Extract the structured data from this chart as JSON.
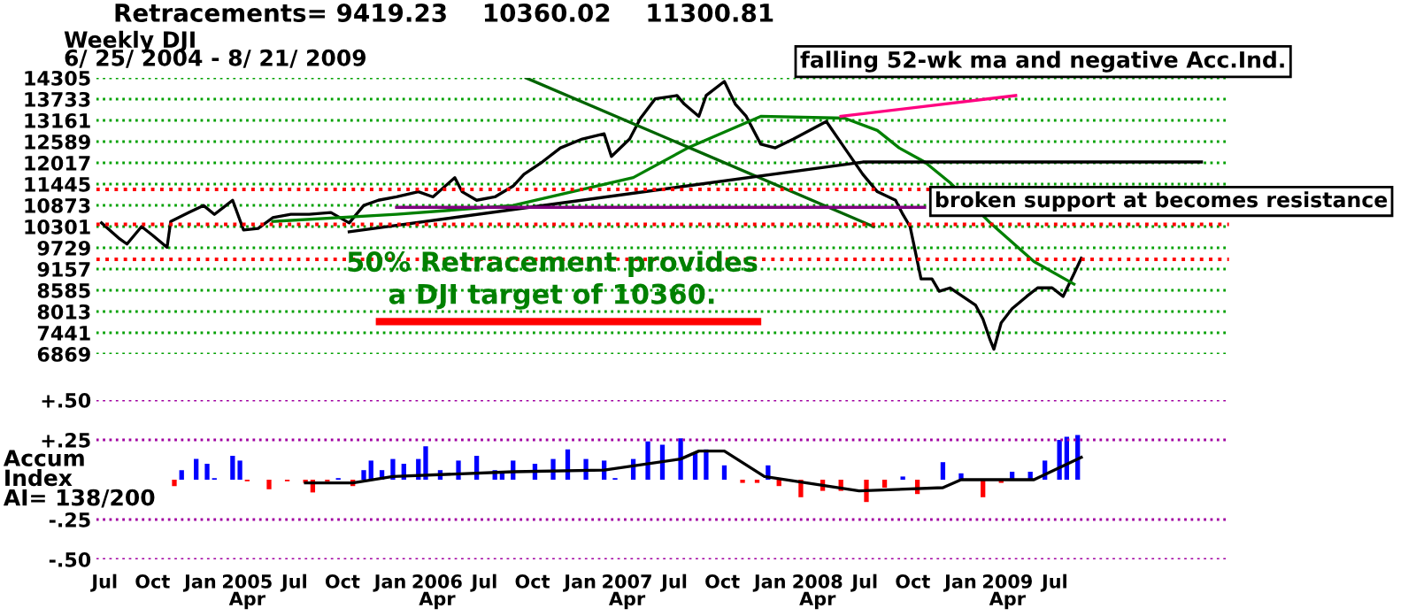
{
  "chart_data": [
    {
      "type": "line",
      "title": "Retracements= 9419.23    10360.02    11300.81",
      "subtitle": "Weekly DJI\n6/ 25/ 2004 - 8/ 21/ 2009",
      "annotations": [
        "falling 52-wk ma and negative Acc.Ind.",
        "broken support at becomes resistance",
        "50% Retracement provides\na DJI target of 10360."
      ],
      "xlim": [
        "2004-06-15",
        "2010-06-01"
      ],
      "ylim": [
        6869,
        14305
      ],
      "yticks": [
        6869,
        7441,
        8013,
        8585,
        9157,
        9729,
        10301,
        10873,
        11445,
        12017,
        12589,
        13161,
        13733,
        14305
      ],
      "tick_labels": "y",
      "grid": "y",
      "legend": false,
      "ref_lines": [
        {
          "axis": "y",
          "value": 9419.23,
          "color": "#ff0000",
          "line_style": "dotted"
        },
        {
          "axis": "y",
          "value": 10360.02,
          "color": "#ff0000",
          "line_style": "dotted"
        },
        {
          "axis": "y",
          "value": 11300.81,
          "color": "#ff0000",
          "line_style": "dotted"
        }
      ],
      "series": [
        {
          "color": "#000000",
          "x": [
            "2004-06-25",
            "2004-07-30",
            "2004-08-13",
            "2004-09-10",
            "2004-10-01",
            "2004-10-29",
            "2004-11-05",
            "2004-12-10",
            "2005-01-07",
            "2005-01-28",
            "2005-03-04",
            "2005-03-25",
            "2005-04-22",
            "2005-05-20",
            "2005-06-24",
            "2005-07-29",
            "2005-09-09",
            "2005-10-14",
            "2005-11-11",
            "2005-12-09",
            "2006-01-13",
            "2006-02-24",
            "2006-03-24",
            "2006-05-05",
            "2006-05-19",
            "2006-06-16",
            "2006-07-21",
            "2006-08-25",
            "2006-09-15",
            "2006-10-20",
            "2006-11-24",
            "2007-01-05",
            "2007-02-16",
            "2007-03-02",
            "2007-04-06",
            "2007-04-27",
            "2007-05-25",
            "2007-07-06",
            "2007-07-20",
            "2007-08-17",
            "2007-08-31",
            "2007-10-05",
            "2007-10-26",
            "2007-11-16",
            "2007-12-14",
            "2008-01-11",
            "2008-02-15",
            "2008-04-18",
            "2008-05-23",
            "2008-06-27",
            "2008-07-25",
            "2008-08-29",
            "2008-09-12",
            "2008-09-26",
            "2008-10-17",
            "2008-11-07",
            "2008-11-21",
            "2008-12-12",
            "2009-01-30",
            "2009-02-13",
            "2009-02-27",
            "2009-03-06",
            "2009-03-20",
            "2009-04-10",
            "2009-05-08",
            "2009-05-29",
            "2009-06-26",
            "2009-07-17",
            "2009-08-07",
            "2009-08-21"
          ],
          "values": [
            10400,
            9970,
            9830,
            10300,
            10070,
            9740,
            10440,
            10680,
            10870,
            10630,
            11010,
            10210,
            10250,
            10540,
            10630,
            10630,
            10680,
            10400,
            10870,
            11010,
            11100,
            11240,
            11100,
            11620,
            11240,
            11010,
            11100,
            11390,
            11710,
            12040,
            12420,
            12660,
            12800,
            12190,
            12660,
            13220,
            13740,
            13830,
            13600,
            13270,
            13830,
            14210,
            13600,
            13270,
            12520,
            12420,
            12660,
            13130,
            12420,
            11710,
            11240,
            11010,
            10630,
            10300,
            8890,
            8890,
            8560,
            8650,
            8180,
            7810,
            7240,
            7000,
            7710,
            8090,
            8420,
            8650,
            8650,
            8420,
            9030,
            9450
          ]
        },
        {
          "color": "#008000",
          "x": [
            "2005-05-20",
            "2006-01-13",
            "2006-08-25",
            "2007-04-13",
            "2007-07-27",
            "2007-12-14",
            "2008-05-23",
            "2008-07-25",
            "2008-09-05",
            "2008-10-24",
            "2008-12-12",
            "2009-02-27",
            "2009-05-22",
            "2009-08-07"
          ],
          "values": [
            10440,
            10630,
            10870,
            11620,
            12420,
            13270,
            13220,
            12890,
            12420,
            12040,
            11480,
            10400,
            9360,
            8750
          ]
        },
        {
          "color": "#006400",
          "x": [
            "2006-09-19",
            "2008-07-18"
          ],
          "values": [
            14305,
            10300
          ]
        },
        {
          "color": "#000000",
          "x": [
            "2005-10-14",
            "2008-06-27",
            "2010-04-09"
          ],
          "values": [
            10160,
            12040,
            12040
          ]
        },
        {
          "color": "#800080",
          "x": [
            "2006-01-13",
            "2008-10-24"
          ],
          "values": [
            10820,
            10820
          ]
        },
        {
          "color": "#ff0080",
          "x": [
            "2008-05-16",
            "2009-04-17"
          ],
          "values": [
            13270,
            13830
          ]
        }
      ]
    },
    {
      "type": "bar",
      "ylabel": "Accum\nIndex\nAI= 138/200",
      "xlim": [
        "2004-06-15",
        "2010-06-01"
      ],
      "ylim": [
        -0.5,
        0.5
      ],
      "yticks": [
        {
          "value": -0.5,
          "label": "-.50"
        },
        {
          "value": -0.25,
          "label": "-.25"
        },
        {
          "value": 0.25,
          "label": "+.25"
        },
        {
          "value": 0.5,
          "label": "+.50"
        }
      ],
      "xticks": [
        {
          "value": "2004-07-01",
          "label": "Jul"
        },
        {
          "value": "2004-10-01",
          "label": "Oct"
        },
        {
          "value": "2005-01-01",
          "label": "Jan"
        },
        {
          "value": "2005-04-01",
          "label": "2005\nApr"
        },
        {
          "value": "2005-07-01",
          "label": "Jul"
        },
        {
          "value": "2005-10-01",
          "label": "Oct"
        },
        {
          "value": "2006-01-01",
          "label": "Jan"
        },
        {
          "value": "2006-04-01",
          "label": "2006\nApr"
        },
        {
          "value": "2006-07-01",
          "label": "Jul"
        },
        {
          "value": "2006-10-01",
          "label": "Oct"
        },
        {
          "value": "2007-01-01",
          "label": "Jan"
        },
        {
          "value": "2007-04-01",
          "label": "2007\nApr"
        },
        {
          "value": "2007-07-01",
          "label": "Jul"
        },
        {
          "value": "2007-10-01",
          "label": "Oct"
        },
        {
          "value": "2008-01-01",
          "label": "Jan"
        },
        {
          "value": "2008-04-01",
          "label": "2008\nApr"
        },
        {
          "value": "2008-07-01",
          "label": "Jul"
        },
        {
          "value": "2008-10-01",
          "label": "Oct"
        },
        {
          "value": "2009-01-01",
          "label": "Jan"
        },
        {
          "value": "2009-04-01",
          "label": "2009\nApr"
        },
        {
          "value": "2009-07-01",
          "label": "Jul"
        }
      ],
      "grid": "y",
      "legend": false,
      "series": [
        {
          "x": [
            "2004-11-12",
            "2004-11-26",
            "2004-12-24",
            "2005-01-14",
            "2005-01-28",
            "2005-03-04",
            "2005-03-18",
            "2005-04-01",
            "2005-05-13",
            "2005-06-17",
            "2005-07-22",
            "2005-08-05",
            "2005-09-02",
            "2005-09-23",
            "2005-10-21",
            "2005-11-11",
            "2005-11-25",
            "2005-12-16",
            "2006-01-06",
            "2006-01-27",
            "2006-02-24",
            "2006-03-10",
            "2006-04-07",
            "2006-05-12",
            "2006-06-16",
            "2006-07-21",
            "2006-08-04",
            "2006-08-25",
            "2006-10-06",
            "2006-11-10",
            "2006-12-08",
            "2007-01-12",
            "2007-02-16",
            "2007-03-09",
            "2007-04-13",
            "2007-05-11",
            "2007-06-08",
            "2007-07-13",
            "2007-08-10",
            "2007-08-31",
            "2007-10-05",
            "2007-11-09",
            "2007-12-07",
            "2007-12-28",
            "2008-01-18",
            "2008-02-29",
            "2008-04-11",
            "2008-05-16",
            "2008-07-04",
            "2008-08-08",
            "2008-09-12",
            "2008-10-10",
            "2008-11-28",
            "2009-01-02",
            "2009-01-23",
            "2009-02-13",
            "2009-03-20",
            "2009-04-10",
            "2009-05-15",
            "2009-06-12",
            "2009-07-10",
            "2009-07-24",
            "2009-08-14"
          ],
          "values": [
            -0.04,
            0.06,
            0.13,
            0.1,
            0.01,
            0.15,
            0.12,
            -0.01,
            -0.06,
            -0.01,
            -0.02,
            -0.08,
            -0.01,
            0.01,
            -0.04,
            0.06,
            0.12,
            0.06,
            0.13,
            0.1,
            0.13,
            0.21,
            0.06,
            0.12,
            0.15,
            0.06,
            0.05,
            0.12,
            0.1,
            0.13,
            0.19,
            0.13,
            0.12,
            0.01,
            0.13,
            0.24,
            0.22,
            0.26,
            0.17,
            0.19,
            0.09,
            -0.02,
            -0.02,
            0.09,
            -0.04,
            -0.11,
            -0.07,
            -0.07,
            -0.14,
            -0.05,
            0.02,
            -0.09,
            0.11,
            0.04,
            0.0,
            -0.11,
            -0.02,
            0.05,
            0.05,
            0.12,
            0.25,
            0.27,
            0.28
          ],
          "colors": [
            "#ff0000",
            "#0000ff",
            "#0000ff",
            "#0000ff",
            "#0000ff",
            "#0000ff",
            "#0000ff",
            "#ff0000",
            "#ff0000",
            "#ff0000",
            "#ff0000",
            "#ff0000",
            "#ff0000",
            "#0000ff",
            "#ff0000",
            "#0000ff",
            "#0000ff",
            "#0000ff",
            "#0000ff",
            "#0000ff",
            "#0000ff",
            "#0000ff",
            "#0000ff",
            "#0000ff",
            "#0000ff",
            "#0000ff",
            "#0000ff",
            "#0000ff",
            "#0000ff",
            "#0000ff",
            "#0000ff",
            "#0000ff",
            "#0000ff",
            "#0000ff",
            "#0000ff",
            "#0000ff",
            "#0000ff",
            "#0000ff",
            "#0000ff",
            "#0000ff",
            "#0000ff",
            "#ff0000",
            "#ff0000",
            "#0000ff",
            "#ff0000",
            "#ff0000",
            "#ff0000",
            "#ff0000",
            "#ff0000",
            "#ff0000",
            "#0000ff",
            "#ff0000",
            "#0000ff",
            "#0000ff",
            "#0000ff",
            "#ff0000",
            "#ff0000",
            "#0000ff",
            "#0000ff",
            "#0000ff",
            "#0000ff",
            "#0000ff",
            "#0000ff"
          ]
        },
        {
          "type": "line",
          "color": "#000000",
          "x": [
            "2005-07-22",
            "2005-10-21",
            "2006-01-06",
            "2006-08-25",
            "2007-02-16",
            "2007-07-13",
            "2007-08-17",
            "2007-10-05",
            "2007-12-21",
            "2008-06-20",
            "2008-11-28",
            "2009-01-02",
            "2009-05-22",
            "2009-08-21"
          ],
          "values": [
            -0.02,
            -0.02,
            0.02,
            0.05,
            0.06,
            0.13,
            0.18,
            0.18,
            0.02,
            -0.07,
            -0.05,
            0.0,
            0.0,
            0.14
          ]
        }
      ]
    }
  ]
}
